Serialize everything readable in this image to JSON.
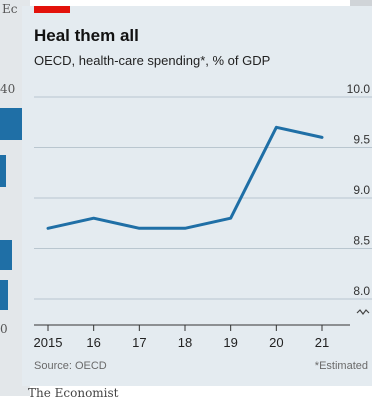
{
  "background": {
    "left_label_top": "Ec",
    "left_label_40": "40",
    "left_label_0": "0",
    "bottom_brand": "The Economist"
  },
  "header": {
    "title": "Heal them all",
    "subtitle": "OECD, health-care spending*, % of GDP"
  },
  "footer": {
    "source": "Source: OECD",
    "note": "*Estimated"
  },
  "colors": {
    "line": "#1f6fa6",
    "accent": "#e3120b",
    "card": "#e4ebf0"
  },
  "chart_data": {
    "type": "line",
    "title": "Heal them all",
    "subtitle": "OECD, health-care spending*, % of GDP",
    "x": [
      "2015",
      "16",
      "17",
      "18",
      "19",
      "20",
      "21"
    ],
    "series": [
      {
        "values": [
          8.7,
          8.8,
          8.7,
          8.7,
          8.8,
          9.7,
          9.6
        ]
      }
    ],
    "ylim": [
      8.0,
      10.0
    ],
    "yticks": [
      "10.0",
      "9.5",
      "9.0",
      "8.5",
      "8.0"
    ],
    "axis_break": true,
    "y_axis_position": "right",
    "grid": true
  }
}
